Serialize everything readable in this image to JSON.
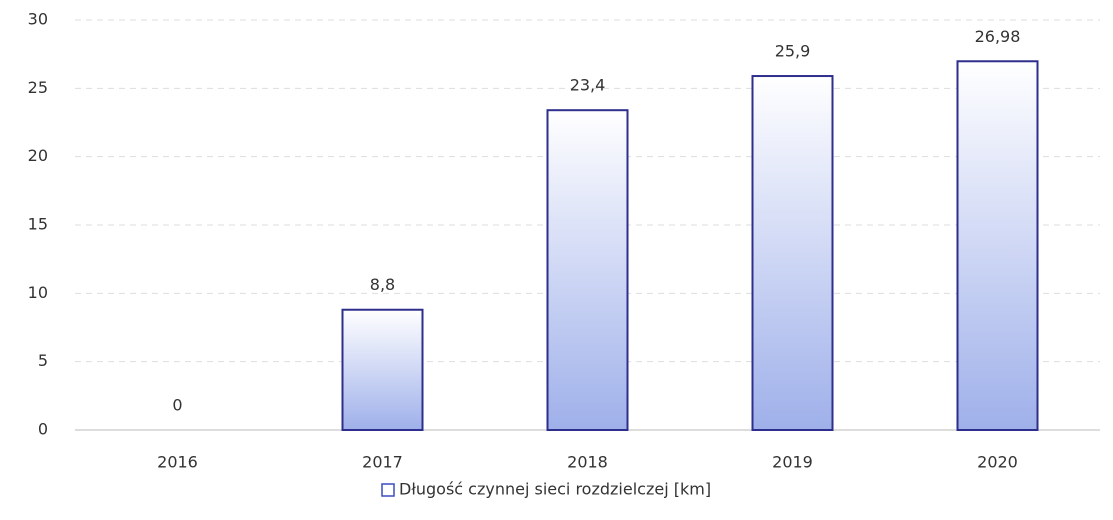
{
  "chart_data": {
    "type": "bar",
    "categories": [
      "2016",
      "2017",
      "2018",
      "2019",
      "2020"
    ],
    "series": [
      {
        "name": "Długość czynnej sieci rozdzielczej [km]",
        "color": "#9fb0ea",
        "values": [
          0,
          8.8,
          23.4,
          25.9,
          26.98
        ],
        "value_labels": [
          "0",
          "8,8",
          "23,4",
          "25,9",
          "26,98"
        ]
      }
    ],
    "ylim": [
      0,
      30
    ],
    "yticks": [
      0,
      5,
      10,
      15,
      20,
      25,
      30
    ],
    "grid": true,
    "legend": "bottom"
  }
}
